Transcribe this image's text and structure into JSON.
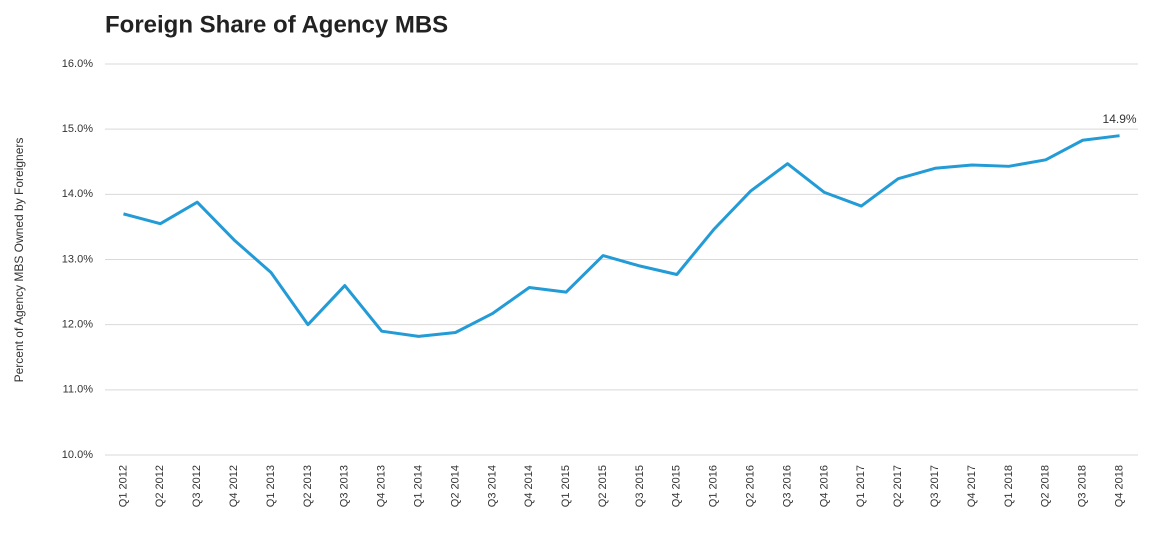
{
  "chart_data": {
    "type": "line",
    "title": "Foreign Share of Agency MBS",
    "y_label": "Percent of Agency MBS Owned by Foreigners",
    "categories": [
      "Q1 2012",
      "Q2 2012",
      "Q3 2012",
      "Q4 2012",
      "Q1 2013",
      "Q2 2013",
      "Q3 2013",
      "Q4 2013",
      "Q1 2014",
      "Q2 2014",
      "Q3 2014",
      "Q4 2014",
      "Q1 2015",
      "Q2 2015",
      "Q3 2015",
      "Q4 2015",
      "Q1 2016",
      "Q2 2016",
      "Q3 2016",
      "Q4 2016",
      "Q1 2017",
      "Q2 2017",
      "Q3 2017",
      "Q4 2017",
      "Q1 2018",
      "Q2 2018",
      "Q3 2018",
      "Q4 2018"
    ],
    "series": [
      {
        "name": "Foreign share",
        "color": "#239bd6",
        "values": [
          13.7,
          13.55,
          13.88,
          13.3,
          12.8,
          12.0,
          12.6,
          11.9,
          11.82,
          11.88,
          12.17,
          12.57,
          12.5,
          13.06,
          12.9,
          12.77,
          13.46,
          14.05,
          14.47,
          14.03,
          13.82,
          14.24,
          14.4,
          14.45,
          14.43,
          14.53,
          14.83,
          14.9
        ],
        "value_labels": [
          null,
          null,
          null,
          null,
          null,
          null,
          null,
          null,
          null,
          null,
          null,
          null,
          null,
          null,
          null,
          null,
          null,
          null,
          null,
          null,
          null,
          null,
          null,
          null,
          null,
          null,
          null,
          "14.9%"
        ]
      }
    ],
    "ylim": [
      10,
      16
    ],
    "yticks": [
      {
        "value": 10,
        "label": "10.0%"
      },
      {
        "value": 11,
        "label": "11.0%"
      },
      {
        "value": 12,
        "label": "12.0%"
      },
      {
        "value": 13,
        "label": "13.0%"
      },
      {
        "value": 14,
        "label": "14.0%"
      },
      {
        "value": 15,
        "label": "15.0%"
      },
      {
        "value": 16,
        "label": "16.0%"
      }
    ],
    "grid": true
  }
}
